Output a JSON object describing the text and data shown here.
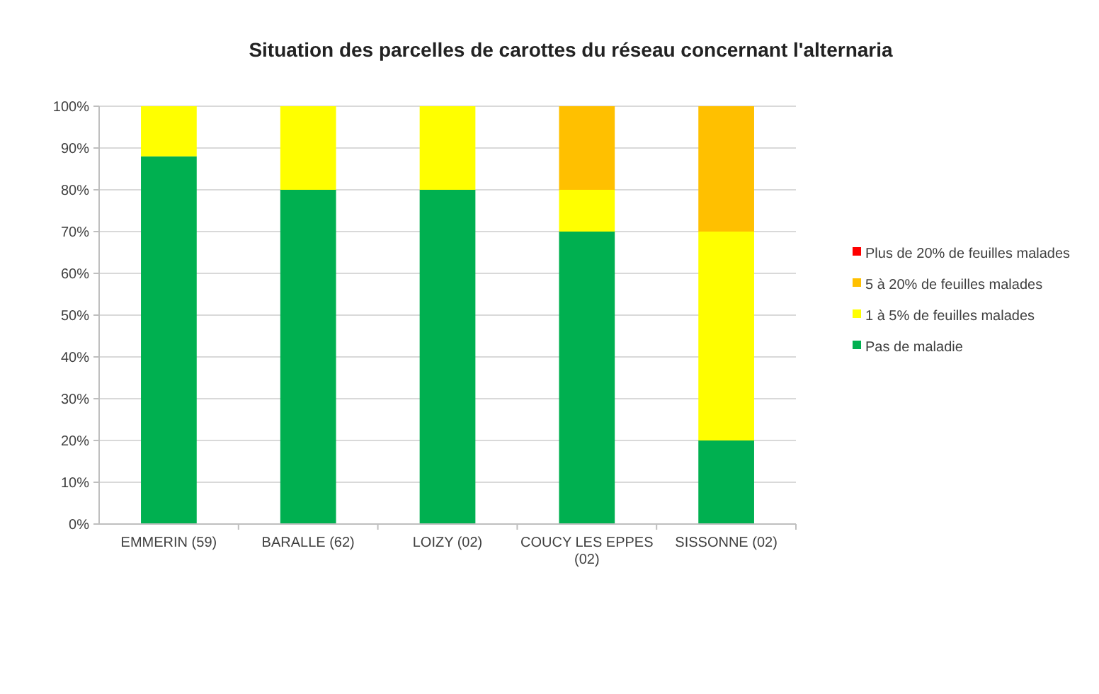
{
  "chart_data": {
    "type": "bar",
    "stacked": true,
    "title": "Situation des parcelles de carottes du réseau concernant l'alternaria",
    "categories": [
      "EMMERIN (59)",
      "BARALLE (62)",
      "LOIZY (02)",
      "COUCY LES EPPES (02)",
      "SISSONNE (02)"
    ],
    "series": [
      {
        "name": "Pas de maladie",
        "color": "#00b050",
        "values": [
          88,
          80,
          80,
          70,
          20
        ]
      },
      {
        "name": "1 à 5% de feuilles malades",
        "color": "#ffff00",
        "values": [
          12,
          20,
          20,
          10,
          50
        ]
      },
      {
        "name": "5 à 20% de feuilles malades",
        "color": "#ffc000",
        "values": [
          0,
          0,
          0,
          20,
          30
        ]
      },
      {
        "name": "Plus de 20% de feuilles malades",
        "color": "#ff0000",
        "values": [
          0,
          0,
          0,
          0,
          0
        ]
      }
    ],
    "ylim": [
      0,
      100
    ],
    "yticks": [
      {
        "value": 0,
        "label": "0%"
      },
      {
        "value": 10,
        "label": "10%"
      },
      {
        "value": 20,
        "label": "20%"
      },
      {
        "value": 30,
        "label": "30%"
      },
      {
        "value": 40,
        "label": "40%"
      },
      {
        "value": 50,
        "label": "50%"
      },
      {
        "value": 60,
        "label": "60%"
      },
      {
        "value": 70,
        "label": "70%"
      },
      {
        "value": 80,
        "label": "80%"
      },
      {
        "value": 90,
        "label": "90%"
      },
      {
        "value": 100,
        "label": "100%"
      }
    ],
    "grid": "y",
    "legend": "right"
  }
}
